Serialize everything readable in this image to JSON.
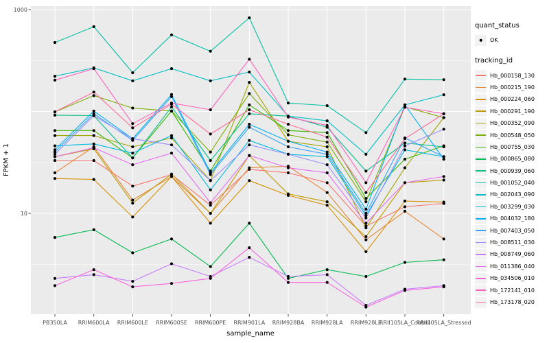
{
  "legend": {
    "quant_status_title": "quant_status",
    "ok_label": "OK",
    "tracking_id_title": "tracking_id"
  },
  "chart_data": {
    "type": "line",
    "title": "",
    "xlabel": "sample_name",
    "ylabel": "FPKM + 1",
    "y_scale": "log10",
    "ylim": [
      1,
      1100
    ],
    "grid": "on",
    "legend_position": "right",
    "panel_bg": "#ebebeb",
    "grid_color": "#ffffff",
    "point_color": "#000000",
    "legend_key_bg": "#f2f2f2",
    "y_ticks": [
      {
        "label": "1000",
        "value": 1000
      },
      {
        "label": "10",
        "value": 10
      }
    ],
    "y_gridlines_major": [
      1000,
      100,
      10
    ],
    "y_gridlines_minor": [
      316.23,
      31.62,
      3.162
    ],
    "categories": [
      "PB350LA",
      "RRIM600LA",
      "RRIM600LE",
      "RRIM600SE",
      "RRIM600PE",
      "RRIM901LA",
      "RRIM928BA",
      "RRIM928LA",
      "RRIM928LE",
      "RRII105LA_Control",
      "RRII105LA_Stressed"
    ],
    "series": [
      {
        "name": "Hb_000158_130",
        "color": "#F8766D",
        "values": [
          33,
          33,
          18.5,
          24,
          12,
          27,
          25,
          20,
          7.5,
          11.6,
          12.5
        ]
      },
      {
        "name": "Hb_000215_190",
        "color": "#EA8331",
        "values": [
          25,
          45,
          13.5,
          23,
          10,
          28,
          29,
          16,
          5.5,
          10.5,
          5.6
        ]
      },
      {
        "name": "Hb_000224_060",
        "color": "#D89000",
        "values": [
          22,
          21.5,
          9.2,
          23,
          8,
          21,
          15,
          12,
          4.2,
          13.2,
          12.9
        ]
      },
      {
        "name": "Hb_000291_190",
        "color": "#C09B00",
        "values": [
          36,
          43,
          12.6,
          24.3,
          10,
          37,
          15.5,
          13,
          5.9,
          20,
          21.2
        ]
      },
      {
        "name": "Hb_000352_090",
        "color": "#A3A500",
        "values": [
          58,
          58,
          45,
          55,
          21,
          193,
          51,
          45,
          7.2,
          28,
          87
        ]
      },
      {
        "name": "Hb_000548_050",
        "color": "#7CAE00",
        "values": [
          99,
          143,
          108,
          101,
          40,
          150,
          59,
          50,
          13,
          111,
          87
        ]
      },
      {
        "name": "Hb_000755_030",
        "color": "#39B600",
        "values": [
          65,
          65,
          35,
          101,
          26,
          116,
          65,
          62,
          14,
          34,
          46
        ]
      },
      {
        "name": "Hb_000865_080",
        "color": "#00BB4E",
        "values": [
          5.8,
          6.9,
          4.1,
          5.6,
          3.0,
          8.0,
          2.3,
          2.8,
          2.4,
          3.3,
          3.5
        ]
      },
      {
        "name": "Hb_000939_060",
        "color": "#00C087",
        "values": [
          92,
          91,
          35,
          111,
          33,
          95,
          90,
          70,
          26,
          49,
          45
        ]
      },
      {
        "name": "Hb_001052_040",
        "color": "#00C1A3",
        "values": [
          475,
          680,
          240,
          565,
          390,
          830,
          121,
          114,
          62,
          208,
          205
        ]
      },
      {
        "name": "Hb_002043_090",
        "color": "#00BFC4",
        "values": [
          222,
          268,
          200,
          263,
          200,
          244,
          90,
          81,
          38,
          116,
          146
        ]
      },
      {
        "name": "Hb_003299_030",
        "color": "#00BAE0",
        "values": [
          46,
          48,
          39,
          58,
          17,
          52,
          38,
          36,
          9.5,
          42,
          36
        ]
      },
      {
        "name": "Hb_004032_180",
        "color": "#00B0F6",
        "values": [
          42,
          101,
          54,
          147,
          25,
          75,
          51,
          40,
          11,
          116,
          34
        ]
      },
      {
        "name": "Hb_007403_050",
        "color": "#35A2FF",
        "values": [
          40,
          95,
          52,
          140,
          24,
          70,
          45,
          38,
          10,
          55,
          36
        ]
      },
      {
        "name": "Hb_008511_030",
        "color": "#9590FF",
        "values": [
          38,
          91,
          54,
          47,
          21,
          47,
          38,
          30,
          9,
          46,
          67
        ]
      },
      {
        "name": "Hb_008749_060",
        "color": "#C77CFF",
        "values": [
          2.3,
          2.5,
          2.15,
          3.2,
          2.4,
          3.7,
          2.4,
          2.5,
          1.25,
          1.8,
          1.95
        ]
      },
      {
        "name": "Hb_011386_040",
        "color": "#E76BF3",
        "values": [
          36,
          44,
          30,
          39,
          12.7,
          37,
          28,
          25,
          8,
          20,
          23
        ]
      },
      {
        "name": "Hb_034506_010",
        "color": "#FA62DB",
        "values": [
          1.95,
          2.8,
          1.9,
          2.05,
          2.3,
          4.6,
          2.1,
          2.1,
          1.2,
          1.75,
          1.9
        ]
      },
      {
        "name": "Hb_172141_010",
        "color": "#FF62BC",
        "values": [
          203,
          263,
          76,
          121,
          104,
          326,
          88,
          73,
          20,
          110,
          95
        ]
      },
      {
        "name": "Hb_173178_020",
        "color": "#FF6A98",
        "values": [
          99,
          155,
          69,
          118,
          60,
          104,
          75,
          56,
          16,
          54,
          95
        ]
      }
    ]
  }
}
